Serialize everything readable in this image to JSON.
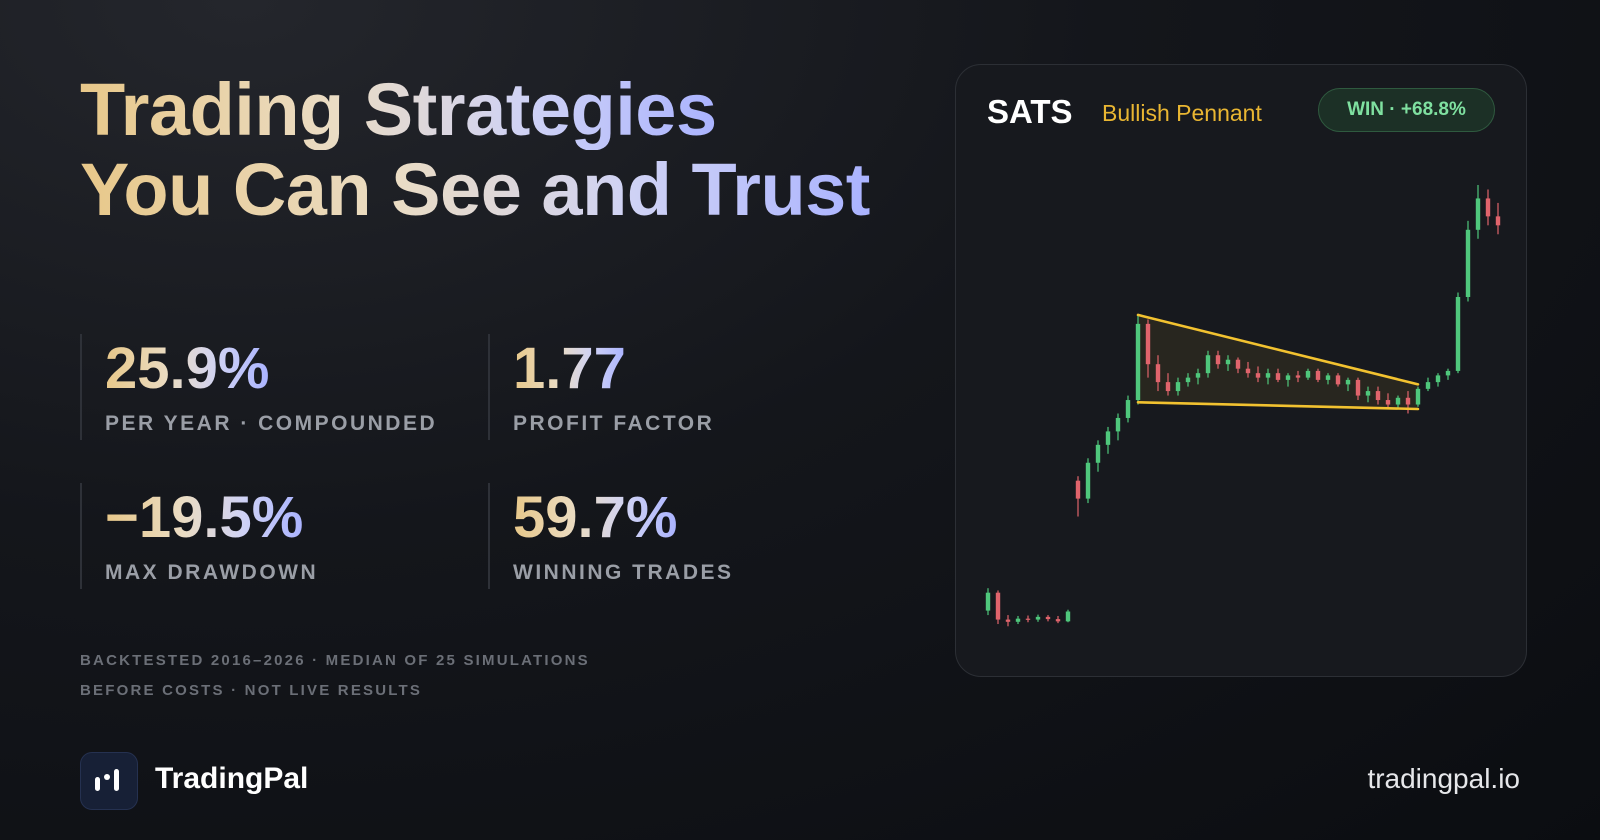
{
  "headline": {
    "line1": "Trading Strategies",
    "line2": "You Can See and Trust"
  },
  "stats": [
    {
      "value": "25.9%",
      "label": "PER YEAR · COMPOUNDED"
    },
    {
      "value": "1.77",
      "label": "PROFIT FACTOR"
    },
    {
      "value": "−19.5%",
      "label": "MAX DRAWDOWN"
    },
    {
      "value": "59.7%",
      "label": "WINNING TRADES"
    }
  ],
  "disclaimer": [
    "BACKTESTED 2016–2026 · MEDIAN OF 25 SIMULATIONS",
    "BEFORE COSTS · NOT LIVE RESULTS"
  ],
  "brand": {
    "name": "TradingPal",
    "url": "tradingpal.io"
  },
  "card": {
    "ticker": "SATS",
    "pattern_name": "Bullish Pennant",
    "badge": "WIN · +68.8%"
  },
  "chart_data": {
    "type": "candlestick",
    "open": [
      5,
      9,
      3,
      2.5,
      3.2,
      3.0,
      3.6,
      3.1,
      2.6,
      34,
      30,
      38,
      42,
      45,
      48,
      52,
      69,
      60,
      56,
      54,
      56,
      57,
      58,
      62,
      60,
      61,
      59,
      58,
      57,
      58,
      56.5,
      57.5,
      57,
      58.5,
      56.5,
      57.5,
      55.5,
      56.5,
      53,
      54,
      52,
      51,
      52.5,
      51,
      54.5,
      56,
      57.5,
      58.5,
      75,
      90,
      97,
      93
    ],
    "high": [
      10,
      9.5,
      4,
      3.8,
      3.9,
      4.1,
      4.0,
      3.8,
      5.2,
      35,
      39,
      43,
      46,
      49,
      53,
      71,
      70,
      62,
      58,
      57,
      58,
      59,
      63,
      63,
      62,
      61.5,
      60.5,
      59.5,
      59,
      59,
      58,
      58.5,
      59,
      59,
      58,
      58,
      57,
      57,
      55,
      55,
      53.5,
      53,
      54,
      55,
      57,
      58,
      59,
      76,
      92,
      100,
      99,
      96
    ],
    "low": [
      4,
      2,
      1.5,
      2,
      2.4,
      2.5,
      2.6,
      2.2,
      2.4,
      26,
      29,
      36,
      40,
      43,
      47,
      51,
      57,
      54,
      53,
      53,
      55,
      55.5,
      57,
      59,
      58.5,
      58,
      57,
      56,
      55.5,
      56,
      55,
      56,
      56.5,
      56,
      55.5,
      55,
      54,
      52,
      51.5,
      51,
      50,
      50,
      49,
      50.5,
      54,
      55,
      56.5,
      58,
      74,
      88,
      91,
      89
    ],
    "close": [
      9,
      3,
      2.5,
      3.2,
      3.0,
      3.6,
      3.1,
      2.6,
      4.8,
      30,
      38,
      42,
      45,
      48,
      52,
      69,
      60,
      56,
      54,
      56,
      57,
      58,
      62,
      60,
      61,
      59,
      58,
      57,
      58,
      56.5,
      57.5,
      57,
      58.5,
      56.5,
      57.5,
      55.5,
      56.5,
      53,
      54,
      52,
      51,
      52.5,
      51,
      54.5,
      56,
      57.5,
      58.5,
      75,
      90,
      97,
      93,
      91
    ],
    "ylim": [
      0,
      100
    ],
    "up_color": "#4fc77c",
    "down_color": "#e0646c",
    "pattern": {
      "x": [
        15,
        43
      ],
      "upper": [
        71,
        55.5
      ],
      "lower": [
        51.5,
        50
      ],
      "color": "#f2c230"
    }
  }
}
